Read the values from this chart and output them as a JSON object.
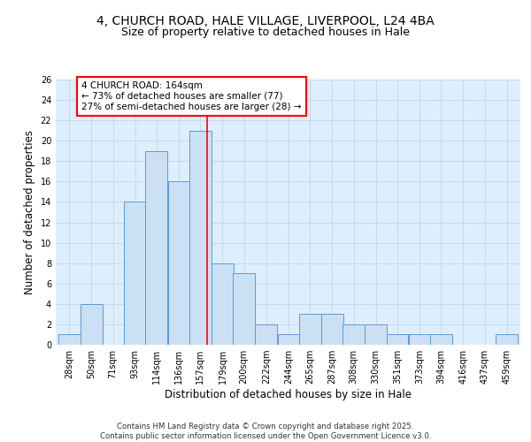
{
  "title_line1": "4, CHURCH ROAD, HALE VILLAGE, LIVERPOOL, L24 4BA",
  "title_line2": "Size of property relative to detached houses in Hale",
  "xlabel": "Distribution of detached houses by size in Hale",
  "ylabel": "Number of detached properties",
  "bins": [
    28,
    50,
    71,
    93,
    114,
    136,
    157,
    179,
    200,
    222,
    244,
    265,
    287,
    308,
    330,
    351,
    373,
    394,
    416,
    437,
    459
  ],
  "counts": [
    1,
    4,
    0,
    14,
    19,
    16,
    21,
    8,
    7,
    2,
    1,
    3,
    3,
    2,
    2,
    1,
    1,
    1,
    0,
    0,
    1
  ],
  "bar_color": "#cce0f5",
  "bar_edge_color": "#5b9bd5",
  "vline_x": 164,
  "vline_color": "red",
  "annotation_text": "4 CHURCH ROAD: 164sqm\n← 73% of detached houses are smaller (77)\n27% of semi-detached houses are larger (28) →",
  "annotation_box_color": "white",
  "annotation_box_edge_color": "red",
  "ylim": [
    0,
    26
  ],
  "yticks": [
    0,
    2,
    4,
    6,
    8,
    10,
    12,
    14,
    16,
    18,
    20,
    22,
    24,
    26
  ],
  "grid_color": "#c8d8e8",
  "background_color": "#ddeeff",
  "footer_text": "Contains HM Land Registry data © Crown copyright and database right 2025.\nContains public sector information licensed under the Open Government Licence v3.0.",
  "title_fontsize": 10,
  "subtitle_fontsize": 9,
  "tick_fontsize": 7,
  "label_fontsize": 8.5,
  "annot_fontsize": 7.5
}
